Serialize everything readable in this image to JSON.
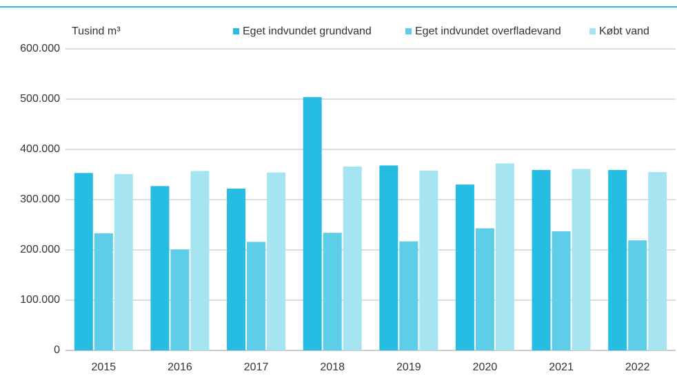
{
  "chart_data": {
    "type": "bar",
    "y_label": "Tusind m³",
    "categories": [
      "2015",
      "2016",
      "2017",
      "2018",
      "2019",
      "2020",
      "2021",
      "2022"
    ],
    "series": [
      {
        "name": "Eget indvundet grundvand",
        "color": "#27bde2",
        "values": [
          353000,
          327000,
          322000,
          504000,
          368000,
          330000,
          359000,
          359000
        ]
      },
      {
        "name": "Eget indvundet overfladevand",
        "color": "#5ecde8",
        "values": [
          233000,
          201000,
          216000,
          234000,
          217000,
          243000,
          237000,
          219000
        ]
      },
      {
        "name": "Købt vand",
        "color": "#a7e4f2",
        "values": [
          351000,
          357000,
          354000,
          366000,
          358000,
          372000,
          361000,
          355000
        ]
      }
    ],
    "ylim": [
      0,
      600000
    ],
    "yticks": [
      0,
      {
        "value": 100000,
        "label": "100.000"
      },
      {
        "value": 200000,
        "label": "200.000"
      },
      {
        "value": 300000,
        "label": "300.000"
      },
      {
        "value": 400000,
        "label": "400.000"
      },
      {
        "value": 500000,
        "label": "500.000"
      },
      {
        "value": 600000,
        "label": "600.000"
      }
    ],
    "grid": true
  }
}
